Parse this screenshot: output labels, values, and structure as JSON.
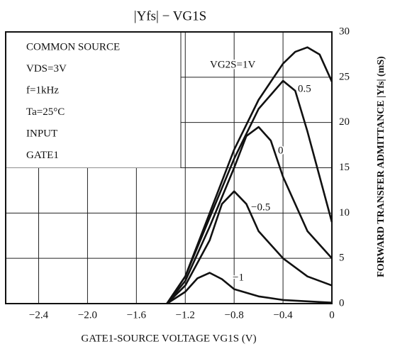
{
  "chart_data": {
    "type": "line",
    "title": "|Yfs| − VG1S",
    "x_label": "GATE1-SOURCE VOLTAGE   VG1S   (V)",
    "y_label": "FORWARD TRANSFER ADMITTANCE |Yfs| (mS)",
    "annotations": [
      "COMMON SOURCE",
      "VDS=3V",
      "f=1kHz",
      "Ta=25°C",
      "INPUT",
      "GATE1"
    ],
    "xlim": [
      -2.67,
      0
    ],
    "ylim": [
      0,
      30
    ],
    "xticks": [
      {
        "value": -2.4,
        "label": "−2.4"
      },
      {
        "value": -2.0,
        "label": "−2.0"
      },
      {
        "value": -1.6,
        "label": "−1.6"
      },
      {
        "value": -1.2,
        "label": "−1.2"
      },
      {
        "value": -0.8,
        "label": "−0.8"
      },
      {
        "value": -0.4,
        "label": "−0.4"
      },
      0
    ],
    "yticks": [
      0,
      5,
      10,
      15,
      20,
      25,
      30
    ],
    "grid": true,
    "series": [
      {
        "name": "VG2S=1V",
        "color": "#111111",
        "x": [
          -1.35,
          -1.2,
          -1.0,
          -0.8,
          -0.6,
          -0.4,
          -0.3,
          -0.2,
          -0.1,
          0
        ],
        "values": [
          0,
          3,
          10,
          17,
          22.5,
          26.5,
          27.8,
          28.3,
          27.5,
          24.5
        ]
      },
      {
        "name": "0.5",
        "color": "#111111",
        "x": [
          -1.35,
          -1.2,
          -1.0,
          -0.8,
          -0.6,
          -0.4,
          -0.3,
          -0.2,
          -0.1,
          0
        ],
        "values": [
          0,
          3,
          9.5,
          16,
          21.5,
          24.6,
          23.5,
          19,
          14,
          9
        ]
      },
      {
        "name": "0",
        "color": "#111111",
        "x": [
          -1.35,
          -1.2,
          -1.0,
          -0.8,
          -0.7,
          -0.6,
          -0.5,
          -0.4,
          -0.2,
          0
        ],
        "values": [
          0,
          2.5,
          8.5,
          15,
          18.5,
          19.5,
          18,
          14,
          8,
          5
        ]
      },
      {
        "name": "−0.5",
        "color": "#111111",
        "x": [
          -1.35,
          -1.2,
          -1.0,
          -0.9,
          -0.8,
          -0.7,
          -0.6,
          -0.4,
          -0.2,
          0
        ],
        "values": [
          0,
          2,
          7,
          11,
          12.4,
          11,
          8,
          5,
          3,
          2
        ]
      },
      {
        "name": "−1",
        "color": "#111111",
        "x": [
          -1.35,
          -1.2,
          -1.1,
          -1.0,
          -0.9,
          -0.8,
          -0.6,
          -0.4,
          0
        ],
        "values": [
          0,
          1.3,
          2.8,
          3.4,
          2.7,
          1.6,
          0.8,
          0.4,
          0.1
        ]
      }
    ]
  }
}
